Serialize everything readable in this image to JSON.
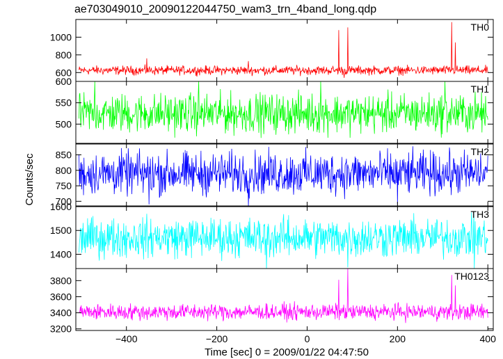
{
  "chart_data": {
    "type": "line",
    "title": "ae703049010_20090122044750_wam3_trn_4band_long.qdp",
    "xlabel": "Time [sec] 0 = 2009/01/22 04:47:50",
    "ylabel": "Counts/sec",
    "xlim": [
      -512,
      412
    ],
    "xticks": [
      -400,
      -200,
      0,
      200,
      400
    ],
    "colors": {
      "TH0": "#ff0000",
      "TH1": "#00ff00",
      "TH2": "#0000ff",
      "TH3": "#00ffff",
      "TH0123": "#ff00ff"
    },
    "panels": [
      {
        "name": "TH0",
        "color": "#ff0000",
        "ylim": [
          500,
          1200
        ],
        "yticks": [
          600,
          800,
          1000
        ],
        "baseline": 625,
        "noise": 55,
        "spikes": [
          {
            "x": -355,
            "y": 760
          },
          {
            "x": -130,
            "y": 730
          },
          {
            "x": 70,
            "y": 1080
          },
          {
            "x": 90,
            "y": 1110
          },
          {
            "x": 82,
            "y": 540
          },
          {
            "x": 320,
            "y": 1170
          },
          {
            "x": 328,
            "y": 940
          }
        ]
      },
      {
        "name": "TH1",
        "color": "#00ff00",
        "ylim": [
          455,
          600
        ],
        "yticks": [
          500,
          550,
          600
        ],
        "baseline": 525,
        "noise": 50,
        "spikes": [
          {
            "x": -470,
            "y": 600
          },
          {
            "x": -240,
            "y": 600
          },
          {
            "x": 30,
            "y": 600
          },
          {
            "x": 305,
            "y": 600
          }
        ]
      },
      {
        "name": "TH2",
        "color": "#0000ff",
        "ylim": [
          685,
          885
        ],
        "yticks": [
          700,
          750,
          800,
          850
        ],
        "baseline": 790,
        "noise": 75,
        "spikes": [
          {
            "x": -350,
            "y": 690
          },
          {
            "x": -130,
            "y": 685
          },
          {
            "x": 200,
            "y": 690
          }
        ]
      },
      {
        "name": "TH3",
        "color": "#00ffff",
        "ylim": [
          1340,
          1600
        ],
        "yticks": [
          1400,
          1500,
          1600
        ],
        "baseline": 1470,
        "noise": 90,
        "spikes": [
          {
            "x": -90,
            "y": 1340
          },
          {
            "x": 90,
            "y": 1345
          },
          {
            "x": 370,
            "y": 1340
          }
        ]
      },
      {
        "name": "TH0123",
        "color": "#ff00ff",
        "ylim": [
          3180,
          3950
        ],
        "yticks": [
          3200,
          3400,
          3600,
          3800
        ],
        "baseline": 3410,
        "noise": 110,
        "spikes": [
          {
            "x": 70,
            "y": 3810
          },
          {
            "x": 90,
            "y": 3950
          },
          {
            "x": 320,
            "y": 3870
          },
          {
            "x": 328,
            "y": 3740
          }
        ]
      }
    ]
  }
}
